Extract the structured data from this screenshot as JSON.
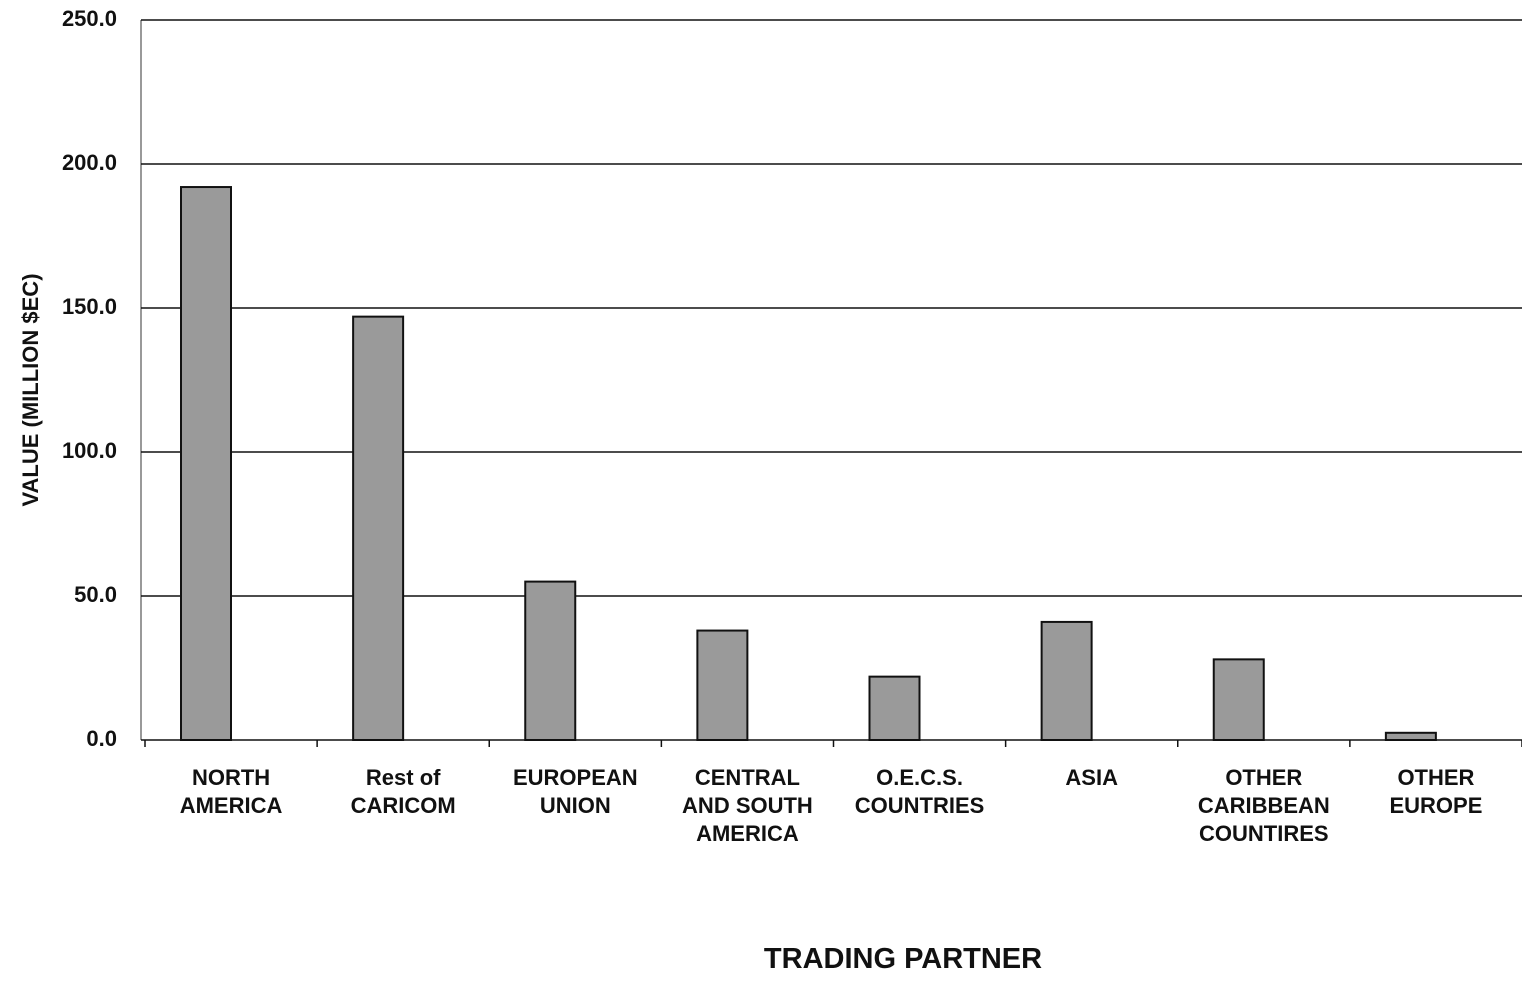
{
  "chart_data": {
    "type": "bar",
    "x_label": "TRADING PARTNER",
    "y_label": "VALUE (MILLION $EC)",
    "categories": [
      "NORTH\nAMERICA",
      "Rest of\nCARICOM",
      "EUROPEAN\nUNION",
      "CENTRAL\nAND SOUTH\nAMERICA",
      "O.E.C.S.\nCOUNTRIES",
      "ASIA",
      "OTHER\nCARIBBEAN\nCOUNTIRES",
      "OTHER\nEUROPE"
    ],
    "values": [
      192,
      147,
      55,
      38,
      22,
      41,
      28,
      2.5
    ],
    "color": "#9a9a9a",
    "ylim": [
      0,
      250
    ],
    "yticks": [
      {
        "value": 0,
        "label": "0.0"
      },
      {
        "value": 50,
        "label": "50.0"
      },
      {
        "value": 100,
        "label": "100.0"
      },
      {
        "value": 150,
        "label": "150.0"
      },
      {
        "value": 200,
        "label": "200.0"
      },
      {
        "value": 250,
        "label": "250.0"
      }
    ],
    "grid": true
  }
}
